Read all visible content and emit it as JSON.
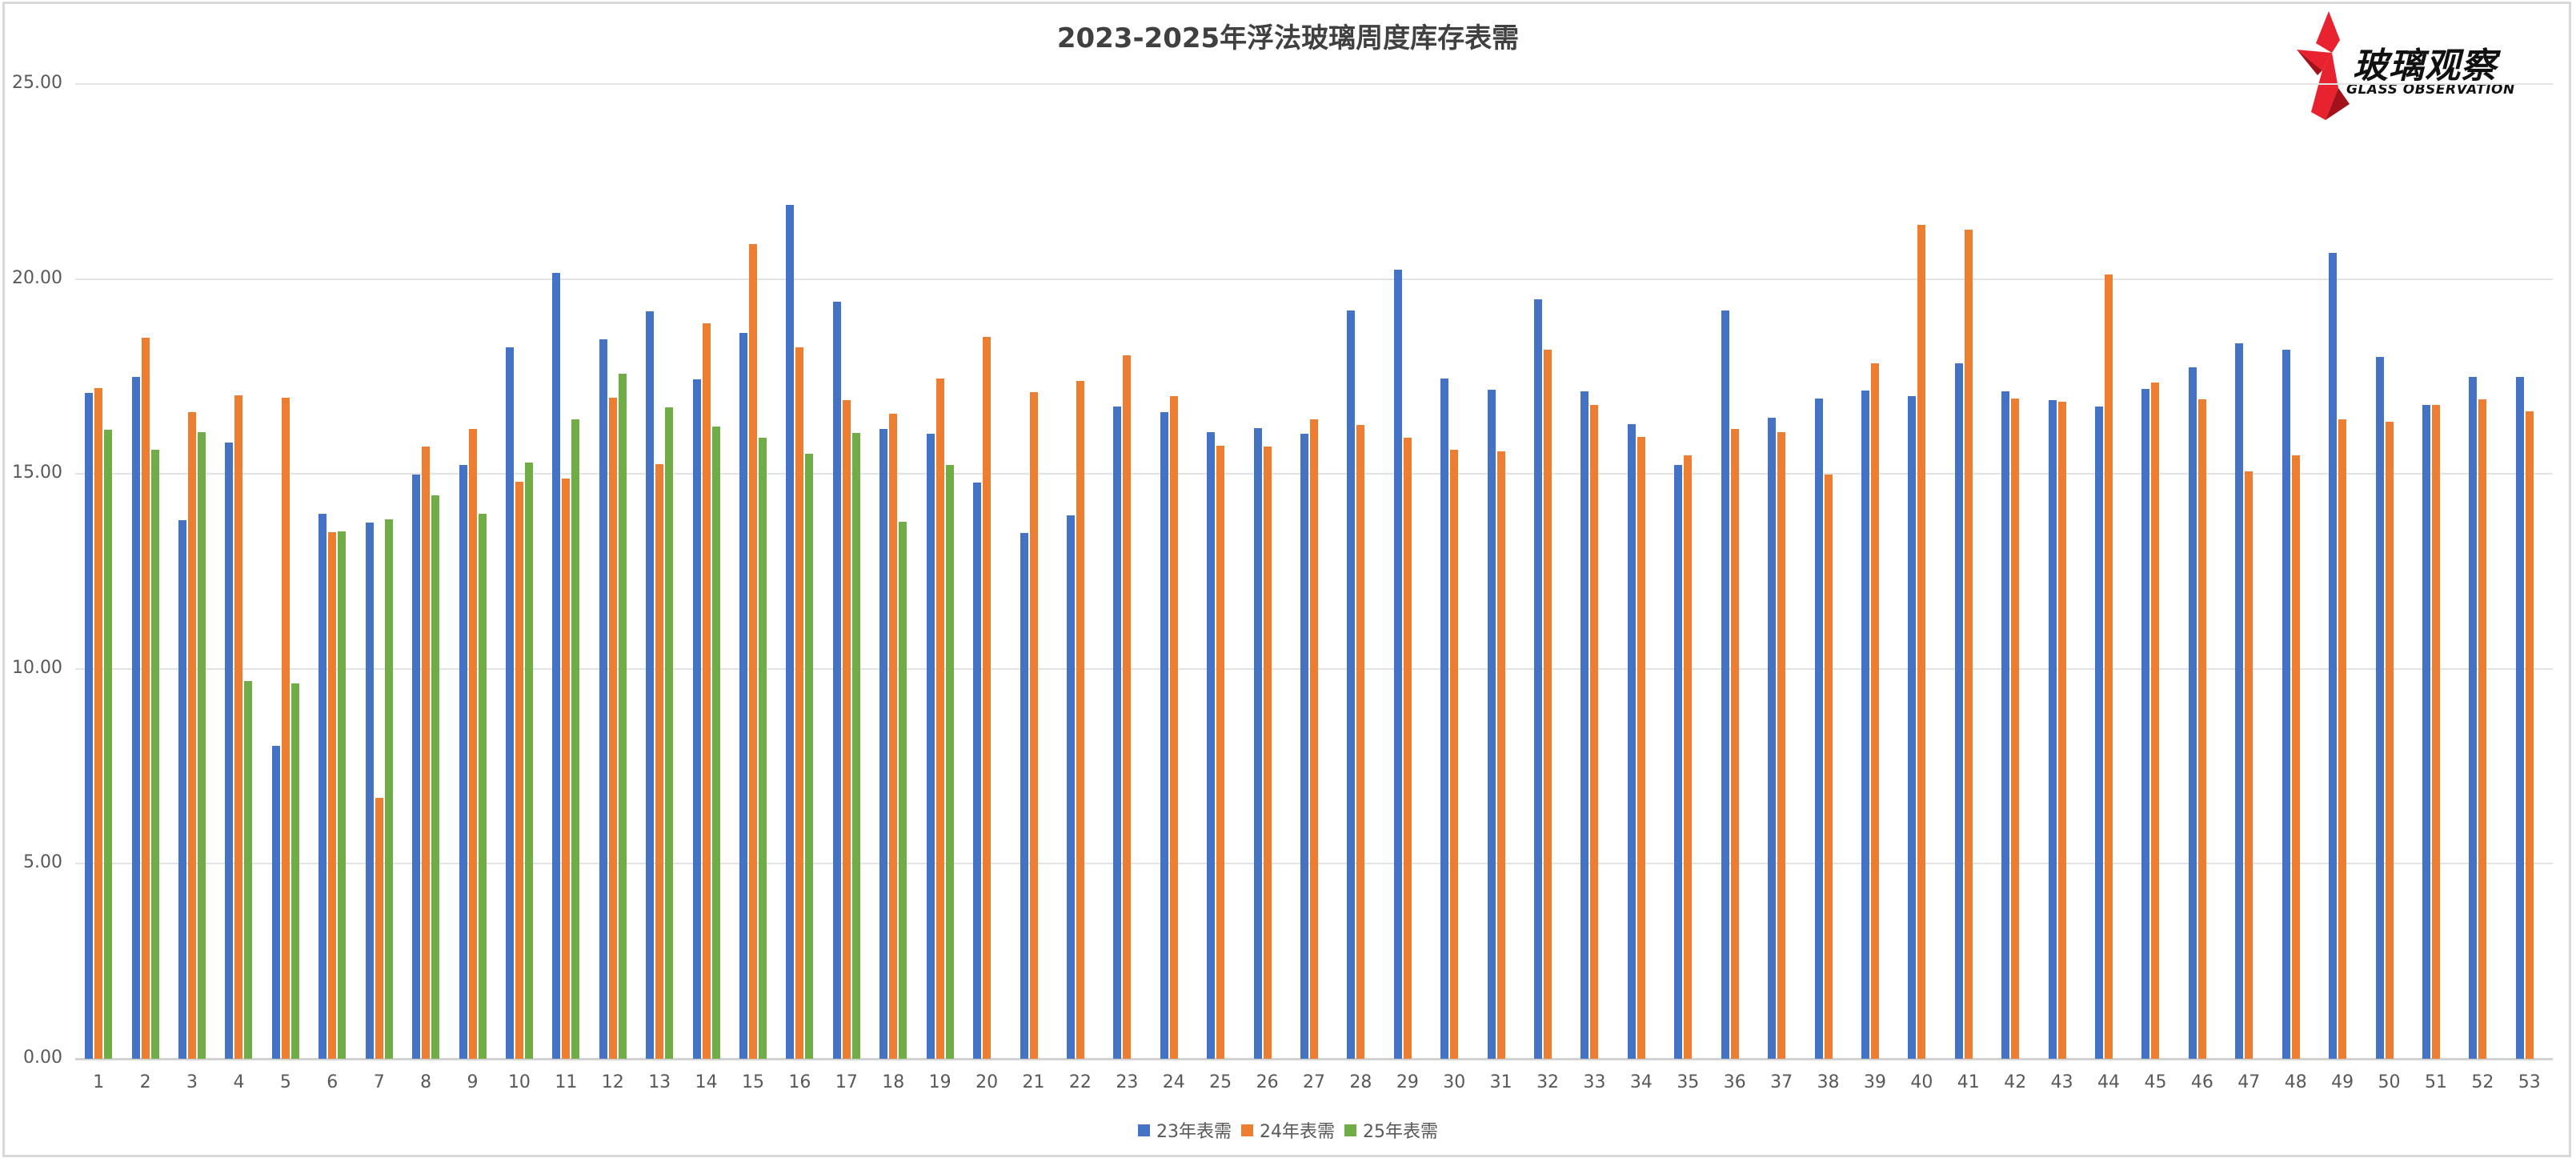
{
  "chart_data": {
    "type": "bar",
    "title": "2023-2025年浮法玻璃周度库存表需",
    "xlabel": "",
    "ylabel": "",
    "ylim": [
      0,
      25
    ],
    "yticks": [
      "0.00",
      "5.00",
      "10.00",
      "15.00",
      "20.00",
      "25.00"
    ],
    "grid": true,
    "legend_position": "bottom",
    "categories": [
      "1",
      "2",
      "3",
      "4",
      "5",
      "6",
      "7",
      "8",
      "9",
      "10",
      "11",
      "12",
      "13",
      "14",
      "15",
      "16",
      "17",
      "18",
      "19",
      "20",
      "21",
      "22",
      "23",
      "24",
      "25",
      "26",
      "27",
      "28",
      "29",
      "30",
      "31",
      "32",
      "33",
      "34",
      "35",
      "36",
      "37",
      "38",
      "39",
      "40",
      "41",
      "42",
      "43",
      "44",
      "45",
      "46",
      "47",
      "48",
      "49",
      "50",
      "51",
      "52",
      "53"
    ],
    "series": [
      {
        "name": "23年表需",
        "color": "#4472C4",
        "values": [
          17.08,
          17.49,
          13.81,
          15.81,
          8.03,
          13.97,
          13.75,
          14.99,
          15.24,
          18.25,
          20.16,
          18.45,
          19.17,
          17.43,
          18.62,
          21.9,
          19.42,
          16.16,
          16.04,
          14.77,
          13.48,
          13.93,
          16.72,
          16.59,
          16.08,
          16.18,
          16.04,
          19.19,
          20.24,
          17.45,
          17.16,
          19.48,
          17.12,
          16.28,
          15.22,
          19.19,
          16.44,
          16.94,
          17.14,
          17.0,
          17.84,
          17.12,
          16.9,
          16.72,
          17.18,
          17.74,
          18.36,
          18.19,
          20.67,
          18.0,
          16.76,
          17.49,
          17.49
        ]
      },
      {
        "name": "24年表需",
        "color": "#ED7D31",
        "values": [
          17.2,
          18.49,
          16.59,
          17.02,
          16.96,
          13.5,
          6.69,
          15.71,
          16.15,
          14.79,
          14.89,
          16.96,
          15.26,
          18.86,
          20.89,
          18.25,
          16.9,
          16.55,
          17.45,
          18.51,
          17.1,
          17.39,
          18.05,
          17.0,
          15.73,
          15.71,
          16.39,
          16.25,
          15.92,
          15.63,
          15.57,
          18.19,
          16.77,
          15.95,
          15.48,
          16.16,
          16.08,
          14.98,
          17.84,
          21.38,
          21.26,
          16.94,
          16.86,
          20.11,
          17.35,
          16.92,
          15.06,
          15.47,
          16.41,
          16.33,
          16.76,
          16.92,
          16.61
        ]
      },
      {
        "name": "25年表需",
        "color": "#70AD47",
        "values": [
          16.14,
          15.63,
          16.07,
          9.68,
          9.62,
          13.52,
          13.83,
          14.44,
          13.97,
          15.3,
          16.41,
          17.57,
          16.71,
          16.22,
          15.92,
          15.51,
          16.06,
          13.77,
          15.22
        ]
      }
    ]
  },
  "logo": {
    "cn": "玻璃观察",
    "en": "GLASS OBSERVATION"
  }
}
